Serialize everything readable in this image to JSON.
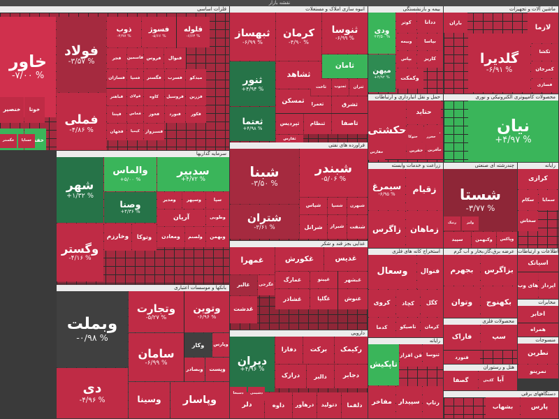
{
  "header": {
    "title": "نقشه بازار"
  },
  "colors": {
    "r1": "#bf2b45",
    "r2": "#d0304d",
    "r3": "#a52a3f",
    "r4": "#8e2637",
    "r5": "#e03a56",
    "g1": "#3ab55a",
    "g2": "#2e8b52",
    "g3": "#267348",
    "n0": "#404040"
  },
  "sectors": [
    {
      "title": "فلزات اساسی",
      "tiles": [
        {
          "name": "خاور",
          "pct": "-۷/۰۰ %",
          "c": "r2"
        },
        {
          "name": "فولاد",
          "pct": "-۳/۵۷ %",
          "c": "r3"
        },
        {
          "name": "فملی",
          "pct": "-۴/۸۶ %",
          "c": "r1"
        },
        {
          "name": "ذوب",
          "pct": "-۴/۹۷ %",
          "c": "r1"
        },
        {
          "name": "فسوژ",
          "pct": "-۵/۶۶ %",
          "c": "r1"
        },
        {
          "name": "فلوله",
          "pct": "-۶/۶۴ %",
          "c": "r1"
        },
        {
          "name": "فجر",
          "pct": "",
          "c": "r1"
        },
        {
          "name": "فاسمین",
          "pct": "",
          "c": "r1"
        },
        {
          "name": "فروس",
          "pct": "",
          "c": "r1"
        },
        {
          "name": "فنوال",
          "pct": "",
          "c": "r1"
        },
        {
          "name": "فسازان",
          "pct": "",
          "c": "r1"
        },
        {
          "name": "فسپا",
          "pct": "",
          "c": "r1"
        },
        {
          "name": "فگستر",
          "pct": "",
          "c": "r1"
        },
        {
          "name": "فسرب",
          "pct": "",
          "c": "r1"
        },
        {
          "name": "میدکو",
          "pct": "",
          "c": "r1"
        },
        {
          "name": "فباهنر",
          "pct": "",
          "c": "r1"
        },
        {
          "name": "فولای",
          "pct": "",
          "c": "r1"
        },
        {
          "name": "کاوه",
          "pct": "",
          "c": "r1"
        },
        {
          "name": "فروسیل",
          "pct": "",
          "c": "r1"
        },
        {
          "name": "فزرین",
          "pct": "",
          "c": "r1"
        },
        {
          "name": "فپنتا",
          "pct": "",
          "c": "r1"
        },
        {
          "name": "فخاس",
          "pct": "",
          "c": "r1"
        },
        {
          "name": "فخوز",
          "pct": "",
          "c": "r1"
        },
        {
          "name": "فنورد",
          "pct": "",
          "c": "r1"
        },
        {
          "name": "فکور",
          "pct": "",
          "c": "r1"
        },
        {
          "name": "فجهان",
          "pct": "",
          "c": "r1"
        },
        {
          "name": "کیمیا",
          "pct": "",
          "c": "r1"
        },
        {
          "name": "فسبزوار",
          "pct": "",
          "c": "r1"
        },
        {
          "name": "خنصیر",
          "pct": "",
          "c": "r1"
        },
        {
          "name": "خوتا",
          "pct": "",
          "c": "r1"
        },
        {
          "name": "خزر",
          "pct": "",
          "c": "g1"
        },
        {
          "name": "خفناور",
          "pct": "",
          "c": "g1"
        },
        {
          "name": "خگستر",
          "pct": "",
          "c": "r1"
        },
        {
          "name": "خساپا",
          "pct": "",
          "c": "r1"
        }
      ]
    },
    {
      "title": "انبوه سازی املاک و مستغلات",
      "tiles": [
        {
          "name": "ثبهساز",
          "pct": "-۶/۹۹ %",
          "c": "r1"
        },
        {
          "name": "کرمان",
          "pct": "-۴/۹۰ %",
          "c": "r1"
        },
        {
          "name": "ثنوسا",
          "pct": "-۶/۹۹ %",
          "c": "r1"
        },
        {
          "name": "ثشاهد",
          "pct": "",
          "c": "r1"
        },
        {
          "name": "ثامان",
          "pct": "",
          "c": "g1"
        },
        {
          "name": "ثنور",
          "pct": "+۴/۹۴ %",
          "c": "g3"
        },
        {
          "name": "ثعتما",
          "pct": "+۴/۹۸ %",
          "c": "g3"
        },
        {
          "name": "ثمسکن",
          "pct": "",
          "c": "r1"
        },
        {
          "name": "ثاخت",
          "pct": "",
          "c": "r1"
        },
        {
          "name": "ثجنوب",
          "pct": "",
          "c": "r1"
        },
        {
          "name": "ثتران",
          "pct": "",
          "c": "r1"
        },
        {
          "name": "ثپردیس",
          "pct": "",
          "c": "r1"
        },
        {
          "name": "ثنظام",
          "pct": "",
          "c": "r1"
        },
        {
          "name": "ثشرق",
          "pct": "",
          "c": "r1"
        },
        {
          "name": "ثاصفا",
          "pct": "",
          "c": "r1"
        },
        {
          "name": "ثعمرا",
          "pct": "",
          "c": "r1"
        },
        {
          "name": "ثفارس",
          "pct": "",
          "c": "r1"
        }
      ]
    },
    {
      "title": "بیمه و بازنشستگی",
      "tiles": [
        {
          "name": "ودی",
          "pct": "+۳/۵۰ %",
          "c": "g1"
        },
        {
          "name": "کوثر",
          "pct": "",
          "c": "r1"
        },
        {
          "name": "ددانا",
          "pct": "",
          "c": "r1"
        },
        {
          "name": "وبیمه",
          "pct": "",
          "c": "r1"
        },
        {
          "name": "بپاس",
          "pct": "",
          "c": "r1"
        },
        {
          "name": "بپاسا",
          "pct": "",
          "c": "r1"
        },
        {
          "name": "کاریز",
          "pct": "",
          "c": "r1"
        },
        {
          "name": "البرز",
          "pct": "",
          "c": "r1"
        },
        {
          "name": "میهن",
          "pct": "+۴/۹۲ %",
          "c": "g2"
        },
        {
          "name": "وکمکت",
          "pct": "",
          "c": "r1"
        }
      ]
    },
    {
      "title": "ماشین آلات و تجهیزات",
      "tiles": [
        {
          "name": "باران",
          "pct": "",
          "c": "r1"
        },
        {
          "name": "لازما",
          "pct": "",
          "c": "r1"
        },
        {
          "name": "گلدیرا",
          "pct": "-۶/۹۱ %",
          "c": "r1"
        },
        {
          "name": "تکشا",
          "pct": "",
          "c": "r1"
        },
        {
          "name": "کمرجان",
          "pct": "",
          "c": "r1"
        },
        {
          "name": "فسازی",
          "pct": "",
          "c": "r1"
        }
      ]
    },
    {
      "title": "محصولات کامپیوتری الکترونیکی و نوری",
      "tiles": [
        {
          "name": "نیان",
          "pct": "+۴/۹۷ %",
          "c": "g1"
        }
      ]
    },
    {
      "title": "حمل و نقل انبارداری و ارتباطات",
      "tiles": [
        {
          "name": "حکشتی",
          "pct": "",
          "c": "r1"
        },
        {
          "name": "حتاید",
          "pct": "",
          "c": "r1"
        },
        {
          "name": "حپترو",
          "pct": "",
          "c": "r1"
        },
        {
          "name": "حپارس",
          "pct": "",
          "c": "r1"
        },
        {
          "name": "حقرین",
          "pct": "",
          "c": "r1"
        },
        {
          "name": "حآفرین",
          "pct": "",
          "c": "r1"
        },
        {
          "name": "حتوکا",
          "pct": "",
          "c": "r1"
        },
        {
          "name": "حخزر",
          "pct": "",
          "c": "r1"
        },
        {
          "name": "حفارس",
          "pct": "",
          "c": "r1"
        }
      ]
    },
    {
      "title": "سرمایه گذاریها",
      "tiles": [
        {
          "name": "شهر",
          "pct": "+۱/۳۲ %",
          "c": "g3"
        },
        {
          "name": "والماس",
          "pct": "+۵/۰۰ %",
          "c": "g1"
        },
        {
          "name": "سدبیر",
          "pct": "+۴/۷۲ %",
          "c": "g1"
        },
        {
          "name": "وصنا",
          "pct": "+۴/۳۶ %",
          "c": "g3"
        },
        {
          "name": "وگستر",
          "pct": "-۴/۱۶ %",
          "c": "r1"
        },
        {
          "name": "ومدیر",
          "pct": "",
          "c": "r1"
        },
        {
          "name": "وسپهر",
          "pct": "",
          "c": "r1"
        },
        {
          "name": "سپا",
          "pct": "",
          "c": "r1"
        },
        {
          "name": "وطوبی",
          "pct": "",
          "c": "r1"
        },
        {
          "name": "وخارزم",
          "pct": "",
          "c": "r1"
        },
        {
          "name": "وتوکا",
          "pct": "",
          "c": "r1"
        },
        {
          "name": "آریان",
          "pct": "",
          "c": "r1"
        },
        {
          "name": "ومعادن",
          "pct": "",
          "c": "r1"
        },
        {
          "name": "ولصنم",
          "pct": "",
          "c": "r1"
        },
        {
          "name": "وبهمن",
          "pct": "",
          "c": "r1"
        }
      ]
    },
    {
      "title": "فراورده های نفتی",
      "tiles": [
        {
          "name": "شبنا",
          "pct": "-۳/۵۰ %",
          "c": "r3"
        },
        {
          "name": "شبندر",
          "pct": "-۵/۰۶ %",
          "c": "r1"
        },
        {
          "name": "شتران",
          "pct": "-۳/۶۱ %",
          "c": "r3"
        },
        {
          "name": "شپاس",
          "pct": "",
          "c": "r1"
        },
        {
          "name": "شسپا",
          "pct": "",
          "c": "r1"
        },
        {
          "name": "شبهرن",
          "pct": "",
          "c": "r1"
        },
        {
          "name": "شرانل",
          "pct": "",
          "c": "r1"
        },
        {
          "name": "شیراز",
          "pct": "",
          "c": "r1"
        },
        {
          "name": "شنفت",
          "pct": "",
          "c": "r1"
        }
      ]
    },
    {
      "title": "زراعت و خدمات وابسته",
      "tiles": [
        {
          "name": "سیمرغ",
          "pct": "-۶/۹۵ %",
          "c": "r1"
        },
        {
          "name": "زقیام",
          "pct": "",
          "c": "r1"
        },
        {
          "name": "زاگرس",
          "pct": "",
          "c": "r1"
        },
        {
          "name": "زماهان",
          "pct": "",
          "c": "r1"
        }
      ]
    },
    {
      "title": "چندرشته ای صنعتی",
      "tiles": [
        {
          "name": "شستا",
          "pct": "-۳/۷۷ %",
          "c": "r4"
        },
        {
          "name": "سپید",
          "pct": "",
          "c": "r1"
        },
        {
          "name": "وکبهمن",
          "pct": "",
          "c": "r1"
        },
        {
          "name": "وپاکس",
          "pct": "",
          "c": "r1"
        },
        {
          "name": "رنیک",
          "pct": "",
          "c": "r1"
        },
        {
          "name": "ولیز",
          "pct": "",
          "c": "r1"
        }
      ]
    },
    {
      "title": "رایانه",
      "tiles": [
        {
          "name": "کرازی",
          "pct": "",
          "c": "r1"
        },
        {
          "name": "سکام",
          "pct": "",
          "c": "r1"
        },
        {
          "name": "سمایا",
          "pct": "",
          "c": "r1"
        },
        {
          "name": "سخاش",
          "pct": "",
          "c": "r1"
        }
      ]
    },
    {
      "title": "بانکها و موسسات اعتباری",
      "tiles": [
        {
          "name": "وبملت",
          "pct": "-۰/۹۸ %",
          "c": "n0"
        },
        {
          "name": "وتجارت",
          "pct": "-۵/۲۷ %",
          "c": "r1"
        },
        {
          "name": "وتوین",
          "pct": "-۶/۹۶ %",
          "c": "r1"
        },
        {
          "name": "دی",
          "pct": "-۴/۹۶ %",
          "c": "r1"
        },
        {
          "name": "سامان",
          "pct": "-۶/۹۹ %",
          "c": "r1"
        },
        {
          "name": "وکار",
          "pct": "",
          "c": "n0"
        },
        {
          "name": "وپارس",
          "pct": "",
          "c": "r1"
        },
        {
          "name": "وبصادر",
          "pct": "",
          "c": "r1"
        },
        {
          "name": "وپست",
          "pct": "",
          "c": "r1"
        },
        {
          "name": "وسینا",
          "pct": "",
          "c": "r1"
        },
        {
          "name": "وپاسار",
          "pct": "",
          "c": "r1"
        }
      ]
    },
    {
      "title": "غذایی بجز قند و شکر",
      "tiles": [
        {
          "name": "غمهرا",
          "pct": "",
          "c": "r1"
        },
        {
          "name": "غالبر",
          "pct": "",
          "c": "r3"
        },
        {
          "name": "غگرجی",
          "pct": "",
          "c": "r1"
        },
        {
          "name": "غکورش",
          "pct": "",
          "c": "r1"
        },
        {
          "name": "غدیس",
          "pct": "",
          "c": "r1"
        },
        {
          "name": "غمارگ",
          "pct": "",
          "c": "r1"
        },
        {
          "name": "غپینو",
          "pct": "",
          "c": "r1"
        },
        {
          "name": "غبشهر",
          "pct": "",
          "c": "r1"
        },
        {
          "name": "غشاذر",
          "pct": "",
          "c": "r1"
        },
        {
          "name": "غگلپا",
          "pct": "",
          "c": "r1"
        },
        {
          "name": "غنوش",
          "pct": "",
          "c": "r1"
        },
        {
          "name": "غدشت",
          "pct": "",
          "c": "r1"
        }
      ]
    },
    {
      "title": "استخراج کانه های فلزی",
      "tiles": [
        {
          "name": "وسعال",
          "pct": "",
          "c": "r1"
        },
        {
          "name": "فنوال",
          "pct": "",
          "c": "r1"
        },
        {
          "name": "کروی",
          "pct": "",
          "c": "r1"
        },
        {
          "name": "کچاد",
          "pct": "",
          "c": "r1"
        },
        {
          "name": "کگل",
          "pct": "",
          "c": "r1"
        },
        {
          "name": "کدما",
          "pct": "",
          "c": "r1"
        },
        {
          "name": "تاصیکو",
          "pct": "",
          "c": "r1"
        },
        {
          "name": "کرمان",
          "pct": "",
          "c": "r1"
        }
      ]
    },
    {
      "title": "عرضه برق،گاز،بخار و آب گرم",
      "tiles": [
        {
          "name": "بجهرم",
          "pct": "",
          "c": "r1"
        },
        {
          "name": "بزاگرس",
          "pct": "",
          "c": "r1"
        },
        {
          "name": "وتوان",
          "pct": "",
          "c": "r1"
        },
        {
          "name": "بکهنوج",
          "pct": "",
          "c": "r1"
        }
      ]
    },
    {
      "title": "اطلاعات و ارتباطات",
      "tiles": [
        {
          "name": "اسیاتک",
          "pct": "",
          "c": "r1"
        },
        {
          "name": "های وب",
          "pct": "",
          "c": "r1"
        },
        {
          "name": "اپرداز",
          "pct": "",
          "c": "r1"
        }
      ]
    },
    {
      "title": "مخابرات",
      "tiles": [
        {
          "name": "اخابر",
          "pct": "",
          "c": "r1"
        },
        {
          "name": "همراه",
          "pct": "",
          "c": "r1"
        }
      ]
    },
    {
      "title": "دارویی",
      "tiles": [
        {
          "name": "دیران",
          "pct": "+۴/۹۶ %",
          "c": "g3"
        },
        {
          "name": "دفارا",
          "pct": "",
          "c": "r1"
        },
        {
          "name": "برکت",
          "pct": "",
          "c": "r1"
        },
        {
          "name": "رکیمک",
          "pct": "",
          "c": "r1"
        },
        {
          "name": "درازک",
          "pct": "",
          "c": "r1"
        },
        {
          "name": "دالبر",
          "pct": "",
          "c": "r1"
        },
        {
          "name": "دجابر",
          "pct": "",
          "c": "r1"
        },
        {
          "name": "دلر",
          "pct": "",
          "c": "r1"
        },
        {
          "name": "داوه",
          "pct": "",
          "c": "r1"
        },
        {
          "name": "درهآور",
          "pct": "",
          "c": "r1"
        },
        {
          "name": "دتولید",
          "pct": "",
          "c": "r1"
        },
        {
          "name": "دلقما",
          "pct": "",
          "c": "r1"
        },
        {
          "name": "دسبحا",
          "pct": "",
          "c": "r1"
        },
        {
          "name": "دشیمی",
          "pct": "",
          "c": "r1"
        }
      ]
    },
    {
      "title": "رایانه",
      "tiles": [
        {
          "name": "تاپکیش",
          "pct": "",
          "c": "g1"
        },
        {
          "name": "فن افزار",
          "pct": "",
          "c": "r1"
        },
        {
          "name": "ثنوسا",
          "pct": "",
          "c": "r1"
        },
        {
          "name": "مفاخر",
          "pct": "",
          "c": "r1"
        },
        {
          "name": "سپیدار",
          "pct": "",
          "c": "r1"
        },
        {
          "name": "رتاپ",
          "pct": "",
          "c": "r1"
        }
      ]
    },
    {
      "title": "محصولات فلزی",
      "tiles": [
        {
          "name": "فاراک",
          "pct": "",
          "c": "r1"
        },
        {
          "name": "سپ",
          "pct": "",
          "c": "r1"
        },
        {
          "name": "فنورد",
          "pct": "",
          "c": "r1"
        }
      ]
    },
    {
      "title": "هتل و رستوران",
      "tiles": [
        {
          "name": "گصفا",
          "pct": "",
          "c": "r1"
        },
        {
          "name": "آبادا",
          "pct": "",
          "c": "r1"
        },
        {
          "name": "گکیش",
          "pct": "",
          "c": "r1"
        }
      ]
    },
    {
      "title": "منسوجات",
      "tiles": [
        {
          "name": "نطرین",
          "pct": "",
          "c": "r1"
        },
        {
          "name": "نمرینو",
          "pct": "",
          "c": "r1"
        }
      ]
    },
    {
      "title": "دستگاههای برقی",
      "tiles": [
        {
          "name": "بشهاب",
          "pct": "",
          "c": "r1"
        },
        {
          "name": "پارس",
          "pct": "",
          "c": "r1"
        }
      ]
    }
  ]
}
